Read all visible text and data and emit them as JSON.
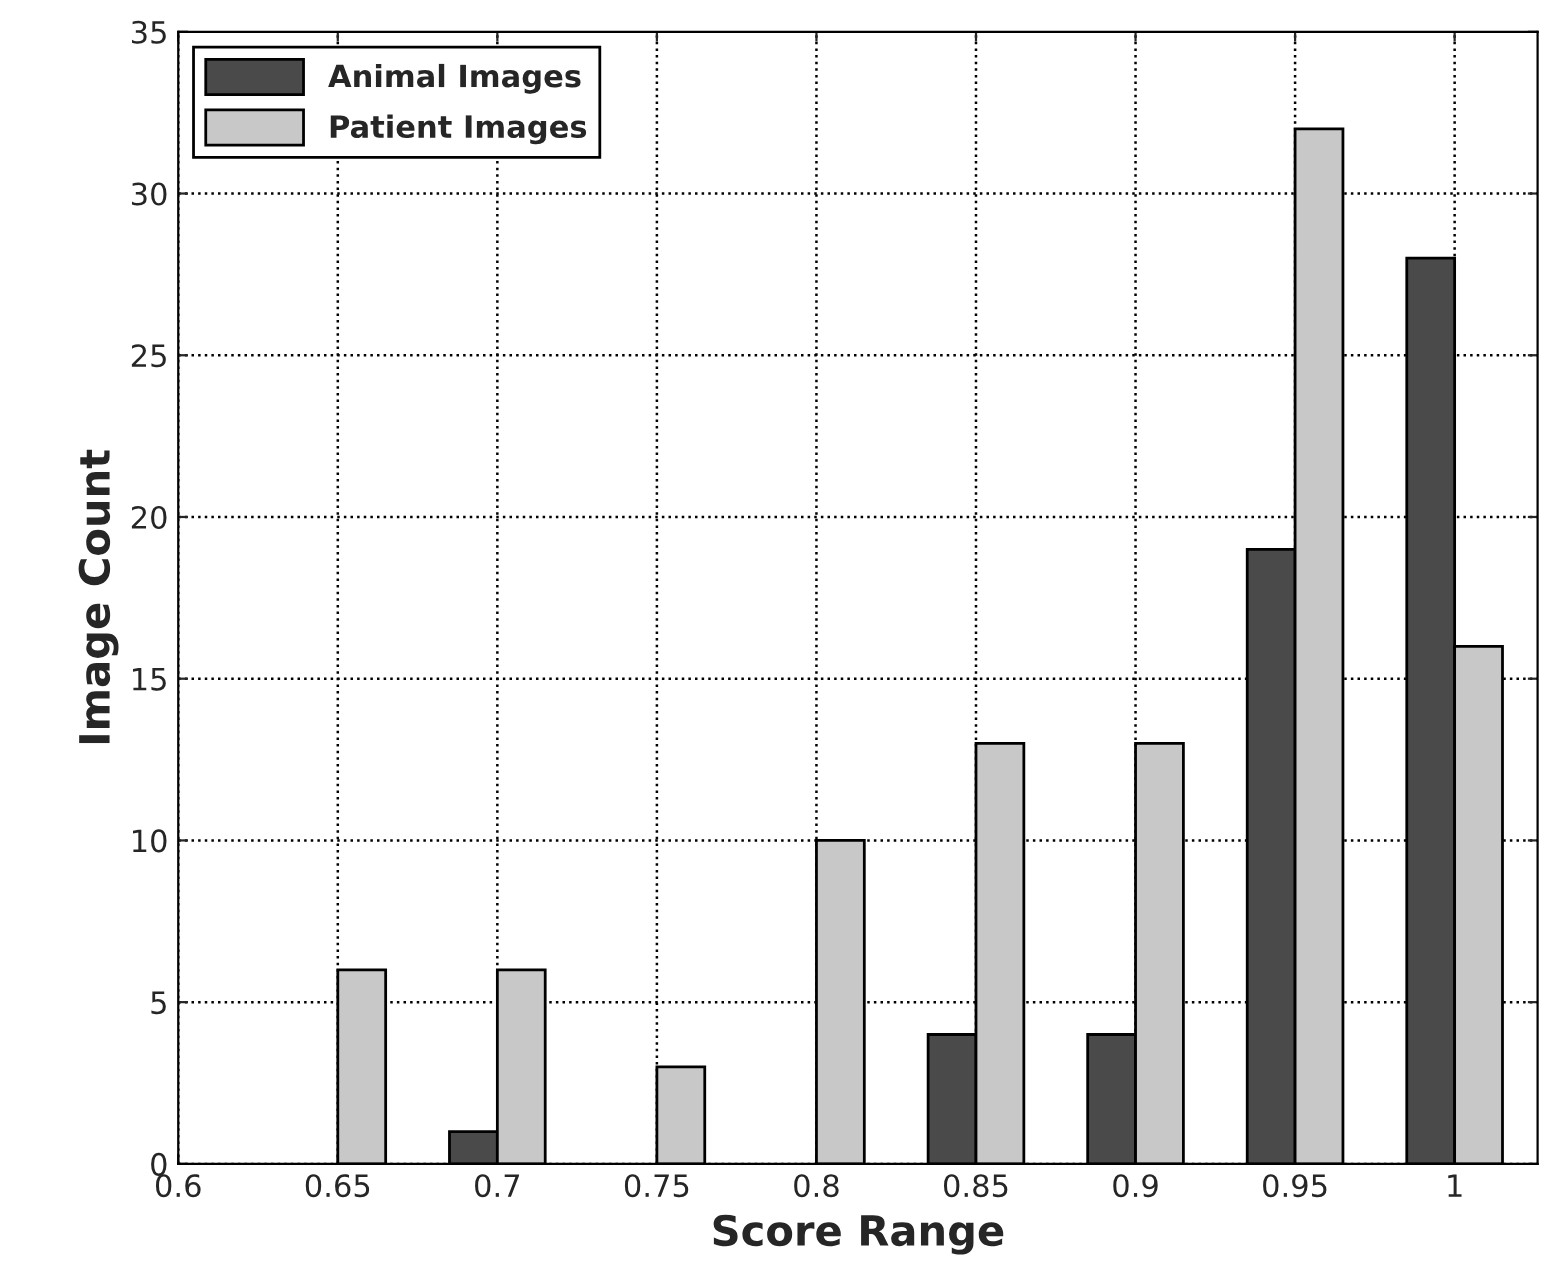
{
  "chart_data": {
    "type": "bar",
    "xlabel": "Score Range",
    "ylabel": "Image Count",
    "x": [
      0.65,
      0.7,
      0.75,
      0.8,
      0.85,
      0.9,
      0.95,
      1
    ],
    "series": [
      {
        "name": "Animal Images",
        "color": "#4a4a4a",
        "values": [
          0,
          1,
          0,
          0,
          4,
          4,
          19,
          28
        ]
      },
      {
        "name": "Patient Images",
        "color": "#c8c8c8",
        "values": [
          6,
          6,
          3,
          10,
          13,
          13,
          32,
          16
        ]
      }
    ],
    "xlim": [
      0.6,
      1.026
    ],
    "xticks": [
      0.6,
      0.65,
      0.7,
      0.75,
      0.8,
      0.85,
      0.9,
      0.95,
      {
        "value": 1,
        "label": "1"
      }
    ],
    "ylim": [
      0,
      35
    ],
    "yticks": [
      0,
      5,
      10,
      15,
      20,
      25,
      30,
      35
    ],
    "grid": true,
    "legend": "top left",
    "line_style": "dotted"
  }
}
